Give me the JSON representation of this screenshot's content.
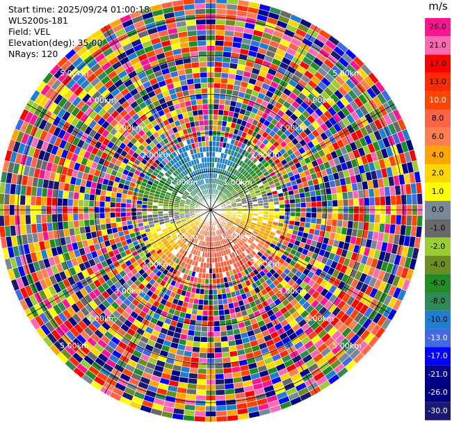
{
  "info": {
    "start_time": "Start time: 2025/09/24 01:00:18",
    "instrument": "WLS200s-181",
    "field": "Field: VEL",
    "elevation": "Elevation(deg): 35.00",
    "nrays": "NRays: 120"
  },
  "colorbar": {
    "unit": "m/s",
    "ticks": [
      "26.0",
      "21.0",
      "17.0",
      "13.0",
      "10.0",
      "8.0",
      "6.0",
      "4.0",
      "2.0",
      "1.0",
      "0.0",
      "-1.0",
      "-2.0",
      "-4.0",
      "-6.0",
      "-8.0",
      "-10.0",
      "-13.0",
      "-17.0",
      "-21.0",
      "-26.0",
      "-30.0"
    ],
    "colors": [
      "#ff1493",
      "#ff69b4",
      "#ff0000",
      "#ff2a00",
      "#ff4500",
      "#ff6347",
      "#ff7f50",
      "#ffa500",
      "#ffd700",
      "#ffff00",
      "#778899",
      "#696969",
      "#9acd32",
      "#6b8e23",
      "#228b22",
      "#2e8b57",
      "#1e7fd0",
      "#4169e1",
      "#0000ff",
      "#00008b",
      "#000080",
      "#191970"
    ]
  },
  "chart_data": {
    "type": "ppi",
    "field": "VEL",
    "units": "m/s",
    "nrays": 120,
    "max_range_km": 5.5,
    "range_rings_km": [
      1,
      2,
      3,
      4,
      5
    ],
    "ring_labels": [
      "1.00km",
      "2.00km",
      "3.00km",
      "4.00km",
      "5.00km"
    ],
    "clean_region_km": 1.8,
    "velocity_pattern": {
      "north": "-6 to -10",
      "west": "-2 to -6",
      "east": "-1 to -4",
      "south": "4 to 13"
    }
  }
}
